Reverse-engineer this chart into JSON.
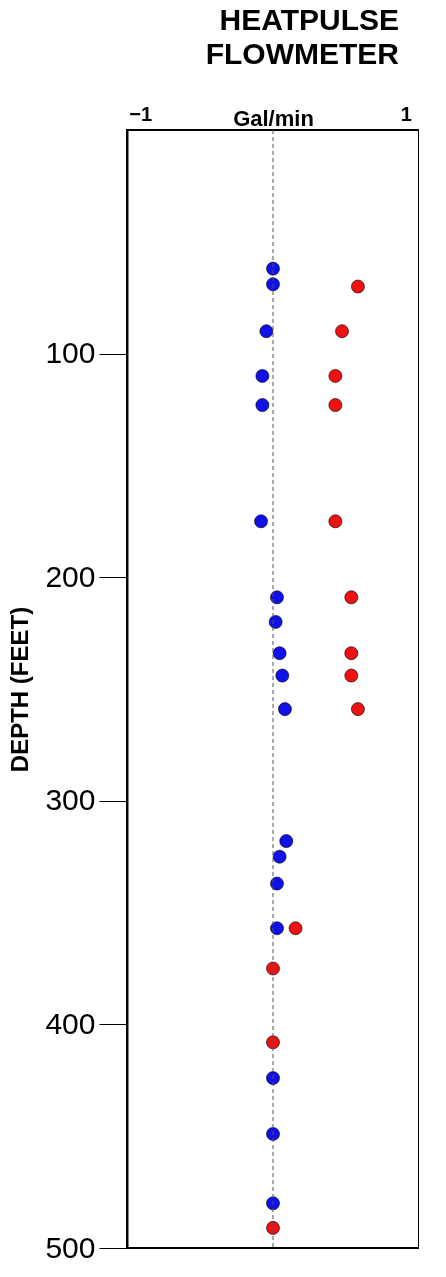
{
  "chart_data": {
    "type": "scatter",
    "title": "HEATPULSE FLOWMETER",
    "xlabel": "Gal/min",
    "ylabel": "DEPTH  (FEET)",
    "xlim": [
      -1.1,
      1.1
    ],
    "xticks": [
      -1,
      1
    ],
    "ylim": [
      500,
      0
    ],
    "yticks": [
      100,
      200,
      300,
      400,
      500
    ],
    "grid": false,
    "marker": "circle",
    "ref_lines": [
      {
        "axis": "x",
        "value": 0,
        "label": null,
        "color": "#555555",
        "line_style": "dashed"
      }
    ],
    "series": [
      {
        "color": "#1010e8",
        "x": [
          0.0,
          0.0,
          -0.05,
          -0.08,
          -0.08,
          -0.09,
          0.03,
          0.02,
          0.05,
          0.07,
          0.09,
          0.1,
          0.05,
          0.03,
          0.03,
          0.0,
          0.0,
          0.0
        ],
        "values": [
          62,
          69,
          90,
          110,
          123,
          175,
          209,
          220,
          234,
          244,
          259,
          318,
          325,
          337,
          357,
          424,
          449,
          480
        ]
      },
      {
        "color": "#ee1111",
        "x": [
          0.64,
          0.52,
          0.47,
          0.47,
          0.47,
          0.59,
          0.59,
          0.59,
          0.64,
          0.17,
          0.0,
          0.0,
          0.0
        ],
        "values": [
          70,
          90,
          110,
          123,
          175,
          209,
          234,
          244,
          259,
          357,
          375,
          408,
          491
        ]
      }
    ]
  }
}
